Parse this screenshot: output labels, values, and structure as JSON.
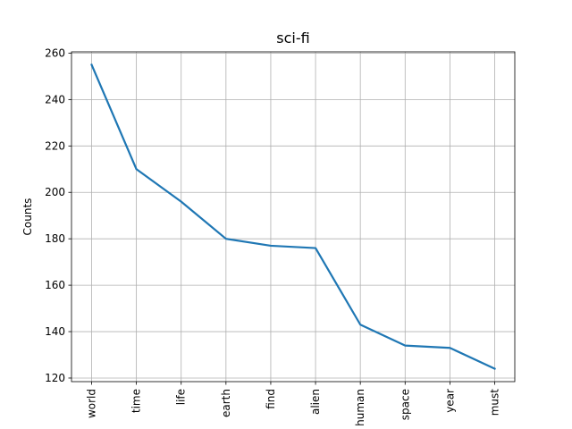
{
  "chart_data": {
    "type": "line",
    "title": "sci-fi",
    "xlabel": "",
    "ylabel": "Counts",
    "categories": [
      "world",
      "time",
      "life",
      "earth",
      "find",
      "alien",
      "human",
      "space",
      "year",
      "must"
    ],
    "series": [
      {
        "values": [
          255,
          210,
          196,
          180,
          177,
          176,
          143,
          134,
          133,
          124
        ],
        "color": "#1f77b4"
      }
    ],
    "ylim": [
      118.45,
      260.55
    ],
    "yticks": [
      120,
      140,
      160,
      180,
      200,
      220,
      240,
      260
    ],
    "grid": true
  }
}
